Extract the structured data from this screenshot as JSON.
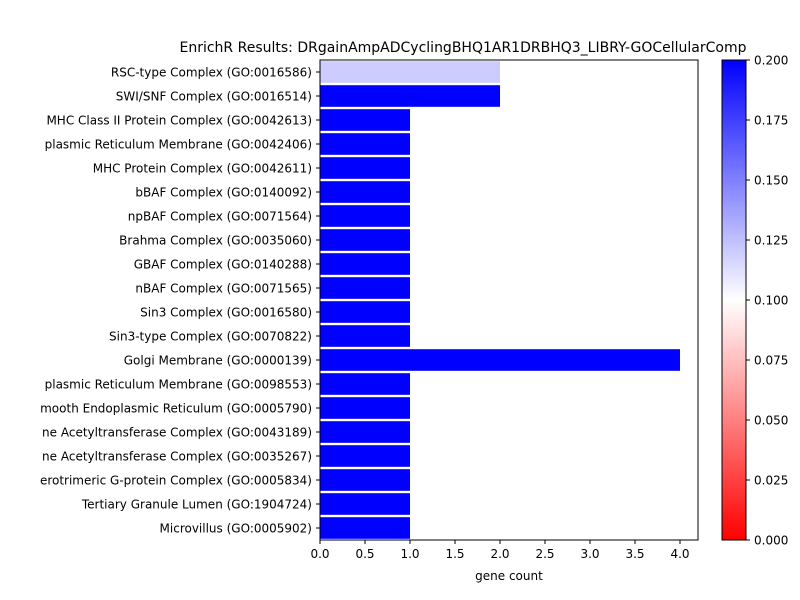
{
  "chart_data": {
    "type": "bar",
    "orientation": "horizontal",
    "title": "EnrichR Results: DRgainAmpADCyclingBHQ1AR1DRBHQ3_LIBRY-GOCellularComp",
    "xlabel": "gene count",
    "ylabel": "",
    "xlim": [
      0,
      4.2
    ],
    "xticks": [
      "0.0",
      "0.5",
      "1.0",
      "1.5",
      "2.0",
      "2.5",
      "3.0",
      "3.5",
      "4.0"
    ],
    "grid": false,
    "categories": [
      "RSC-type Complex (GO:0016586)",
      "SWI/SNF Complex (GO:0016514)",
      "MHC Class II Protein Complex (GO:0042613)",
      "plasmic Reticulum Membrane (GO:0042406)",
      "MHC Protein Complex (GO:0042611)",
      "bBAF Complex (GO:0140092)",
      "npBAF Complex (GO:0071564)",
      "Brahma Complex (GO:0035060)",
      "GBAF Complex (GO:0140288)",
      "nBAF Complex (GO:0071565)",
      "Sin3 Complex (GO:0016580)",
      "Sin3-type Complex (GO:0070822)",
      "Golgi Membrane (GO:0000139)",
      "plasmic Reticulum Membrane (GO:0098553)",
      "mooth Endoplasmic Reticulum (GO:0005790)",
      "ne Acetyltransferase Complex (GO:0043189)",
      "ne Acetyltransferase Complex (GO:0035267)",
      "erotrimeric G-protein Complex (GO:0005834)",
      "Tertiary Granule Lumen (GO:1904724)",
      "Microvillus (GO:0005902)"
    ],
    "values": [
      2,
      2,
      1,
      1,
      1,
      1,
      1,
      1,
      1,
      1,
      1,
      1,
      4,
      1,
      1,
      1,
      1,
      1,
      1,
      1
    ],
    "color_values": [
      0.12,
      0.2,
      0.2,
      0.2,
      0.2,
      0.2,
      0.2,
      0.2,
      0.2,
      0.2,
      0.2,
      0.2,
      0.2,
      0.2,
      0.2,
      0.2,
      0.2,
      0.2,
      0.2,
      0.2
    ],
    "colorbar": {
      "range": [
        0,
        0.2
      ],
      "ticks": [
        "0.000",
        "0.025",
        "0.050",
        "0.075",
        "0.100",
        "0.125",
        "0.150",
        "0.175",
        "0.200"
      ],
      "colors": [
        "#ff0000",
        "#ffffff",
        "#0000ff"
      ]
    }
  }
}
